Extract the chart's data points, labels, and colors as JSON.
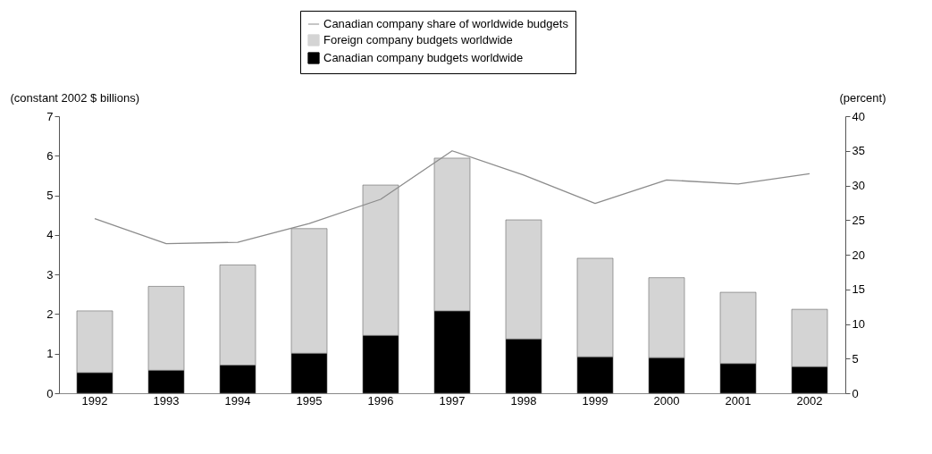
{
  "chart_data": {
    "type": "bar",
    "stacked": true,
    "ylabel": "(constant 2002 $ billions)",
    "y2label": "(percent)",
    "categories": [
      "1992",
      "1993",
      "1994",
      "1995",
      "1996",
      "1997",
      "1998",
      "1999",
      "2000",
      "2001",
      "2002"
    ],
    "series": [
      {
        "name": "Canadian company budgets worldwide",
        "color": "#000000",
        "values": [
          0.52,
          0.58,
          0.71,
          1.01,
          1.46,
          2.08,
          1.37,
          0.92,
          0.9,
          0.75,
          0.67
        ]
      },
      {
        "name": "Foreign company budgets worldwide",
        "color": "#d4d4d4",
        "values": [
          1.56,
          2.12,
          2.53,
          3.15,
          3.8,
          3.86,
          3.01,
          2.49,
          2.02,
          1.8,
          1.45
        ]
      },
      {
        "name": "Canadian company share of worldwide budgets",
        "type": "line",
        "axis": "y2",
        "color": "#8c8c8c",
        "values": [
          25.2,
          21.6,
          21.8,
          24.5,
          28,
          35,
          31.5,
          27.4,
          30.8,
          30.2,
          31.7
        ]
      }
    ],
    "ylim": [
      0,
      7
    ],
    "yticks": [
      0,
      1,
      2,
      3,
      4,
      5,
      6,
      7
    ],
    "y2lim": [
      0,
      40
    ],
    "y2ticks": [
      0,
      5,
      10,
      15,
      20,
      25,
      30,
      35,
      40
    ],
    "grid": false,
    "legend": "top"
  }
}
